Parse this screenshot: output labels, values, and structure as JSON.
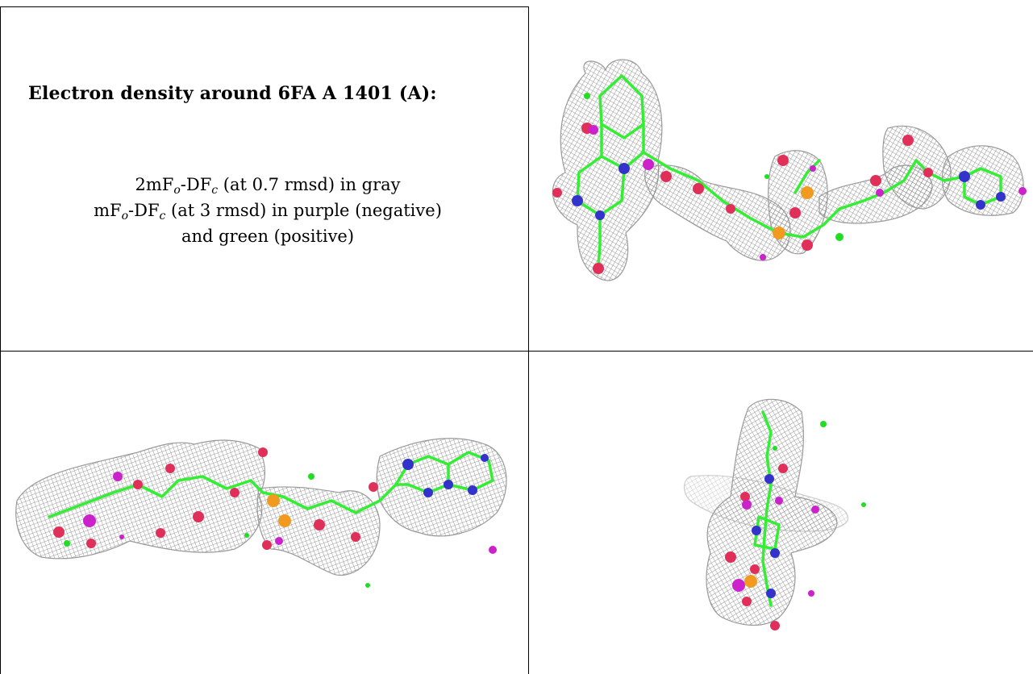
{
  "caption": {
    "title": "Electron density around 6FA A 1401 (A):",
    "line1": {
      "a": "2mF",
      "sub1": "o",
      "b": "-DF",
      "sub2": "c",
      "c": " (at 0.7 rmsd) in gray"
    },
    "line2": {
      "a": "mF",
      "sub1": "o",
      "b": "-DF",
      "sub2": "c",
      "c": " (at 3 rmsd) in purple (negative)"
    },
    "line3": "and green (positive)"
  },
  "colors": {
    "mesh": "#8c8c8c",
    "bond_carbon": "#33ee33",
    "nitrogen": "#3333cc",
    "oxygen": "#e0305a",
    "phosphorus": "#f09a20",
    "negative": "#cc22cc",
    "positive": "#22dd22"
  }
}
